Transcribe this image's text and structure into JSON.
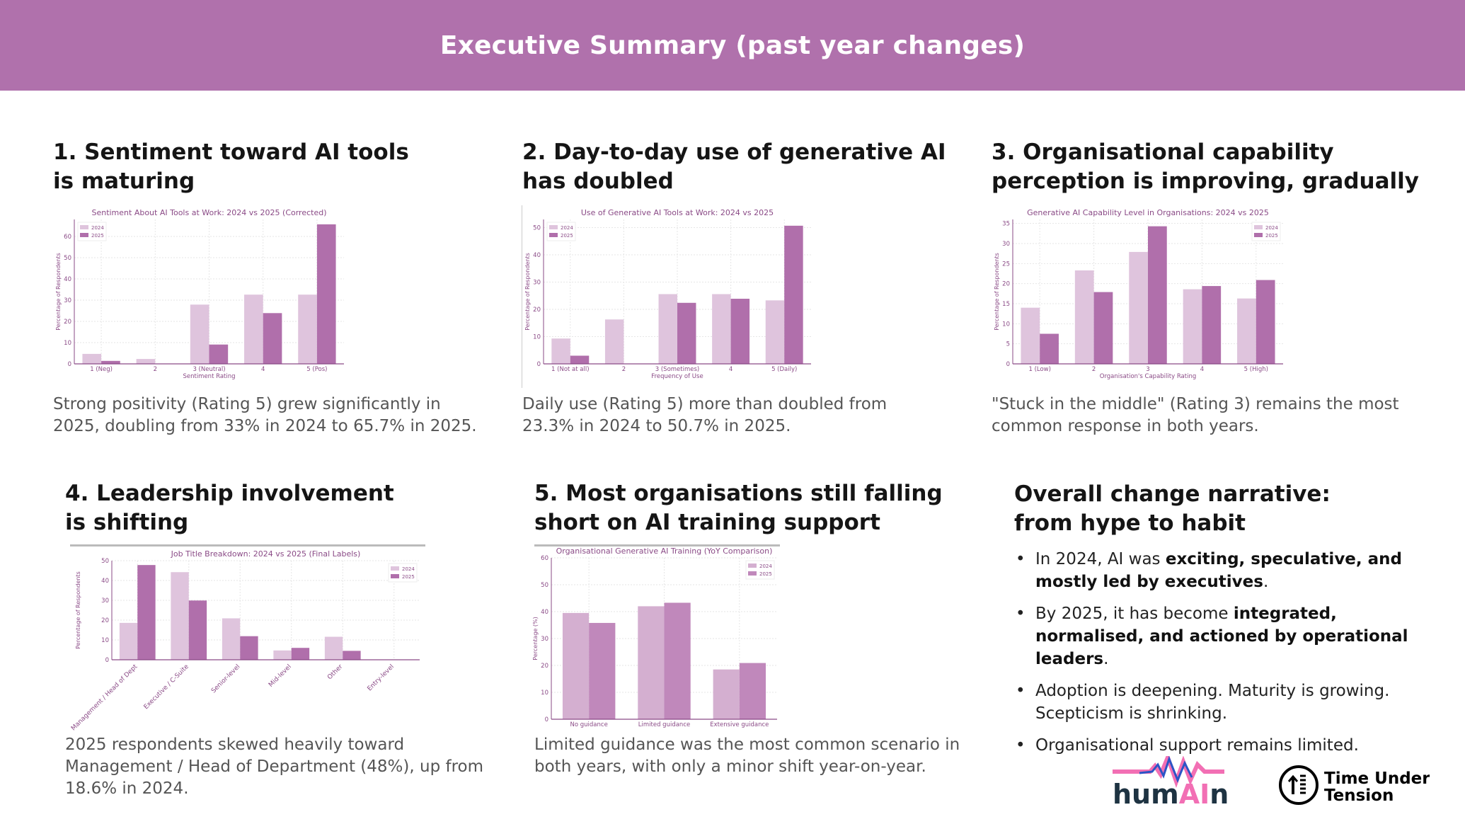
{
  "header": {
    "title": "Executive Summary (past year changes)"
  },
  "sections": [
    {
      "title": "1. Sentiment toward AI tools\nis maturing",
      "caption": "Strong positivity (Rating 5) grew significantly in\n2025, doubling from 33% in 2024 to 65.7% in 2025."
    },
    {
      "title": "2. Day-to-day use of generative AI\nhas doubled",
      "caption": "Daily use (Rating 5) more than doubled from\n23.3% in 2024 to 50.7% in 2025."
    },
    {
      "title": "3. Organisational capability\nperception is improving, gradually",
      "caption": "\"Stuck in the middle\" (Rating 3) remains the most\ncommon response in both years."
    },
    {
      "title": "4. Leadership involvement\nis shifting",
      "caption": "2025 respondents skewed heavily toward\nManagement / Head of Department (48%), up from\n18.6% in 2024."
    },
    {
      "title": "5. Most organisations still falling\nshort on AI training support",
      "caption": "Limited guidance was the most common scenario in\nboth years, with only a minor shift year-on-year."
    }
  ],
  "narrative": {
    "title": "Overall change narrative:\nfrom hype to habit",
    "bullets": [
      {
        "pre": "In 2024, AI was ",
        "bold": "exciting, speculative, and mostly led by executives",
        "post": "."
      },
      {
        "pre": "By 2025, it has become ",
        "bold": "integrated, normalised, and actioned by operational leaders",
        "post": "."
      },
      {
        "pre": "Adoption is deepening. Maturity is growing. Scepticism is shrinking.",
        "bold": "",
        "post": ""
      },
      {
        "pre": "Organisational support remains limited.",
        "bold": "",
        "post": ""
      }
    ]
  },
  "logos": {
    "humain": "humAIn",
    "tut": "Time Under Tension"
  },
  "colors": {
    "header": "#b071ac",
    "c2024": "#dfc4dd",
    "c2025": "#b06fab",
    "c2024b": "#d4afd0",
    "c2025b": "#c088bb",
    "chart_text": "#8a4a86"
  },
  "chart_data": [
    {
      "type": "bar",
      "title": "Sentiment About AI Tools at Work: 2024 vs 2025 (Corrected)",
      "xlabel": "Sentiment Rating",
      "ylabel": "Percentage of Respondents",
      "categories": [
        "1 (Neg)",
        "2",
        "3 (Neutral)",
        "4",
        "5 (Pos)"
      ],
      "ylim": [
        0,
        68
      ],
      "yticks": [
        0,
        10,
        20,
        30,
        40,
        50,
        60
      ],
      "legend": "top-left",
      "grid": true,
      "series": [
        {
          "name": "2024",
          "values": [
            4.7,
            2.3,
            27.9,
            32.6,
            32.6
          ]
        },
        {
          "name": "2025",
          "values": [
            1.4,
            0,
            9.1,
            23.9,
            65.7
          ]
        }
      ]
    },
    {
      "type": "bar",
      "title": "Use of Generative AI Tools at Work: 2024 vs 2025",
      "xlabel": "Frequency of Use",
      "ylabel": "Percentage of Respondents",
      "categories": [
        "1 (Not at all)",
        "2",
        "3 (Sometimes)",
        "4",
        "5 (Daily)"
      ],
      "ylim": [
        0,
        53
      ],
      "yticks": [
        0,
        10,
        20,
        30,
        40,
        50
      ],
      "legend": "top-left",
      "grid": true,
      "series": [
        {
          "name": "2024",
          "values": [
            9.3,
            16.3,
            25.6,
            25.6,
            23.3
          ]
        },
        {
          "name": "2025",
          "values": [
            3.0,
            0,
            22.4,
            23.9,
            50.7
          ]
        }
      ]
    },
    {
      "type": "bar",
      "title": "Generative AI Capability Level in Organisations: 2024 vs 2025",
      "xlabel": "Organisation's Capability Rating",
      "ylabel": "Percentage of Respondents",
      "categories": [
        "1 (Low)",
        "2",
        "3",
        "4",
        "5 (High)"
      ],
      "ylim": [
        0,
        36
      ],
      "yticks": [
        0,
        5,
        10,
        15,
        20,
        25,
        30,
        35
      ],
      "legend": "top-right",
      "grid": true,
      "series": [
        {
          "name": "2024",
          "values": [
            14.0,
            23.3,
            27.9,
            18.6,
            16.3
          ]
        },
        {
          "name": "2025",
          "values": [
            7.5,
            17.9,
            34.3,
            19.4,
            20.9
          ]
        }
      ]
    },
    {
      "type": "bar",
      "title": "Job Title Breakdown: 2024 vs 2025 (Final Labels)",
      "xlabel": "",
      "ylabel": "Percentage of Respondents",
      "categories": [
        "Management / Head of Dept",
        "Executive / C-Suite",
        "Senior-level",
        "Mid-level",
        "Other",
        "Entry-level"
      ],
      "ylim": [
        0,
        50
      ],
      "yticks": [
        0,
        10,
        20,
        30,
        40,
        50
      ],
      "legend": "top-right",
      "grid": true,
      "series": [
        {
          "name": "2024",
          "values": [
            18.6,
            44.2,
            20.9,
            4.7,
            11.6,
            0
          ]
        },
        {
          "name": "2025",
          "values": [
            47.8,
            29.9,
            11.9,
            6.0,
            4.5,
            0
          ]
        }
      ]
    },
    {
      "type": "bar",
      "title": "Organisational Generative AI Training (YoY Comparison)",
      "xlabel": "",
      "ylabel": "Percentage (%)",
      "categories": [
        "No guidance",
        "Limited guidance",
        "Extensive guidance"
      ],
      "ylim": [
        0,
        60
      ],
      "yticks": [
        0,
        10,
        20,
        30,
        40,
        50,
        60
      ],
      "legend": "top-right",
      "grid": true,
      "series": [
        {
          "name": "2024",
          "values": [
            39.5,
            42.0,
            18.5
          ]
        },
        {
          "name": "2025",
          "values": [
            35.8,
            43.3,
            20.9
          ]
        }
      ]
    }
  ]
}
